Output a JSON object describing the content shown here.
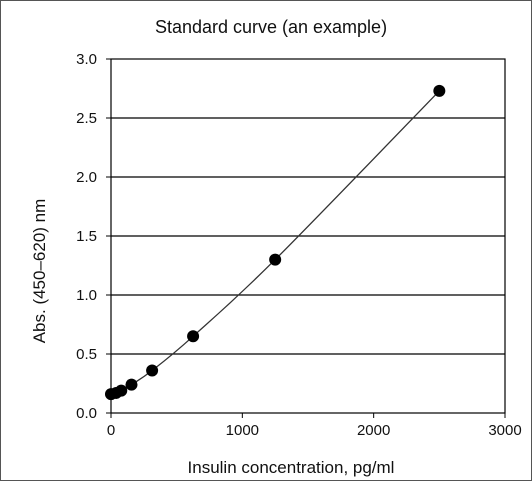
{
  "chart_data": {
    "type": "scatter",
    "title": "Standard curve (an example)",
    "xlabel": "Insulin concentration, pg/ml",
    "ylabel": "Abs. (450–620) nm",
    "xlim": [
      0,
      3000
    ],
    "ylim": [
      0,
      3.0
    ],
    "x_ticks": [
      "0",
      "1000",
      "2000",
      "3000"
    ],
    "y_ticks": [
      "0.0",
      "0.5",
      "1.0",
      "1.5",
      "2.0",
      "2.5",
      "3.0"
    ],
    "grid": "horizontal",
    "series": [
      {
        "x": [
          0,
          39,
          78,
          156,
          313,
          625,
          1250,
          2500
        ],
        "y": [
          0.16,
          0.17,
          0.19,
          0.24,
          0.36,
          0.65,
          1.3,
          2.73
        ],
        "line": "smooth",
        "marker": "filled-circle",
        "color": "#000000"
      }
    ]
  }
}
